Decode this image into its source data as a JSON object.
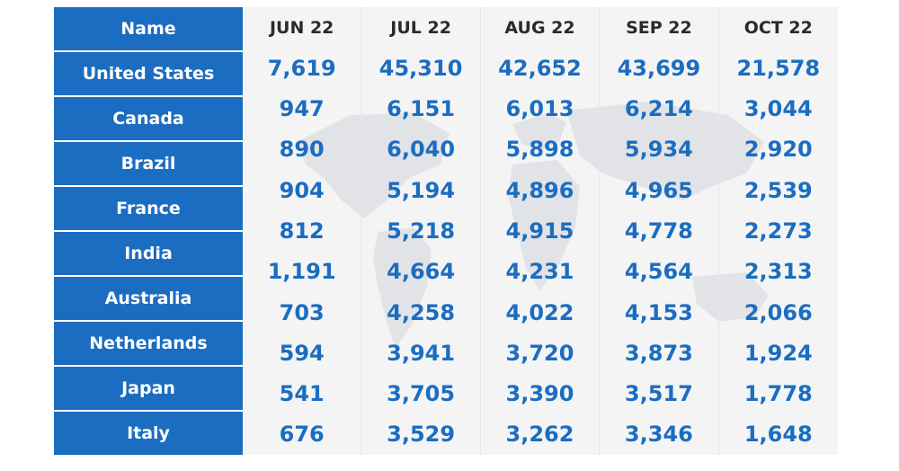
{
  "table": {
    "name_header": "Name",
    "months": [
      "JUN 22",
      "JUL 22",
      "AUG 22",
      "SEP 22",
      "OCT 22"
    ],
    "rows": [
      {
        "name": "United States",
        "values": [
          "7,619",
          "45,310",
          "42,652",
          "43,699",
          "21,578"
        ]
      },
      {
        "name": "Canada",
        "values": [
          "947",
          "6,151",
          "6,013",
          "6,214",
          "3,044"
        ]
      },
      {
        "name": "Brazil",
        "values": [
          "890",
          "6,040",
          "5,898",
          "5,934",
          "2,920"
        ]
      },
      {
        "name": "France",
        "values": [
          "904",
          "5,194",
          "4,896",
          "4,965",
          "2,539"
        ]
      },
      {
        "name": "India",
        "values": [
          "812",
          "5,218",
          "4,915",
          "4,778",
          "2,273"
        ]
      },
      {
        "name": "Australia",
        "values": [
          "1,191",
          "4,664",
          "4,231",
          "4,564",
          "2,313"
        ]
      },
      {
        "name": "Netherlands",
        "values": [
          "703",
          "4,258",
          "4,022",
          "4,153",
          "2,066"
        ]
      },
      {
        "name": "Japan",
        "values": [
          "594",
          "3,941",
          "3,720",
          "3,873",
          "1,924"
        ]
      },
      {
        "name": "Italy",
        "values": [
          "541",
          "3,705",
          "3,390",
          "3,517",
          "1,778"
        ]
      },
      {
        "name": "",
        "values": [
          "676",
          "3,529",
          "3,262",
          "3,346",
          "1,648"
        ]
      }
    ]
  },
  "colors": {
    "name_column": "#1b6dc1",
    "value_text": "#1b6dc1",
    "header_text": "#2a2a2a",
    "data_background": "#f4f4f5",
    "map_silhouette": "#e2e3e6"
  },
  "chart_data": {
    "type": "table",
    "columns": [
      "Name",
      "JUN 22",
      "JUL 22",
      "AUG 22",
      "SEP 22",
      "OCT 22"
    ],
    "row_labels": [
      "United States",
      "Canada",
      "Brazil",
      "France",
      "India",
      "Australia",
      "Netherlands",
      "Japan",
      "Italy",
      ""
    ],
    "values": [
      [
        7619,
        45310,
        42652,
        43699,
        21578
      ],
      [
        947,
        6151,
        6013,
        6214,
        3044
      ],
      [
        890,
        6040,
        5898,
        5934,
        2920
      ],
      [
        904,
        5194,
        4896,
        4965,
        2539
      ],
      [
        812,
        5218,
        4915,
        4778,
        2273
      ],
      [
        1191,
        4664,
        4231,
        4564,
        2313
      ],
      [
        703,
        4258,
        4022,
        4153,
        2066
      ],
      [
        594,
        3941,
        3720,
        3873,
        1924
      ],
      [
        541,
        3705,
        3390,
        3517,
        1778
      ],
      [
        676,
        3529,
        3262,
        3346,
        1648
      ]
    ]
  }
}
